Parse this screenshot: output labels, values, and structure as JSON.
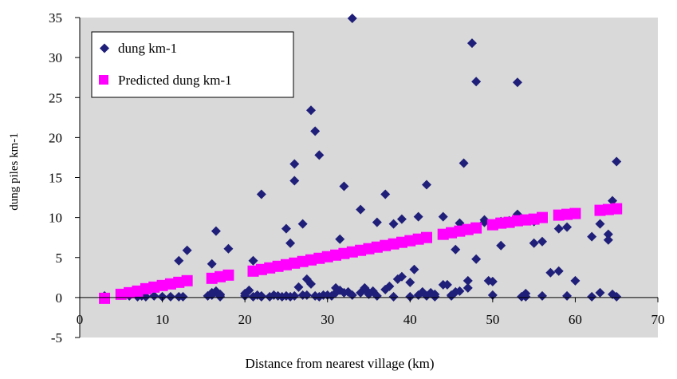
{
  "colors": {
    "plot_bg": "#d9d9d9",
    "observed": "#1f1f7a",
    "predicted": "#ff00ff",
    "axis": "#000000"
  },
  "chart_data": {
    "type": "scatter",
    "xlabel": "Distance from nearest village (km)",
    "ylabel": "dung piles km-1",
    "xlim": [
      0,
      70
    ],
    "ylim": [
      -5,
      35
    ],
    "xticks": [
      0,
      10,
      20,
      30,
      40,
      50,
      60,
      70
    ],
    "yticks": [
      -5,
      0,
      5,
      10,
      15,
      20,
      25,
      30,
      35
    ],
    "grid": false,
    "legend_position": "top-left",
    "series": [
      {
        "name": "dung km-1",
        "marker": "diamond",
        "x": [
          3,
          5,
          5.5,
          6,
          7,
          7.5,
          8,
          9,
          10,
          11,
          12,
          12.5,
          15.5,
          16,
          16,
          16.5,
          17,
          17,
          20,
          20,
          20.5,
          21,
          21.5,
          22,
          22,
          23,
          23.5,
          24,
          24.5,
          25,
          25.5,
          26,
          26.5,
          27,
          27.5,
          28,
          28.5,
          29,
          29.5,
          30,
          30.5,
          31,
          31.5,
          32,
          32.5,
          33,
          34,
          34.5,
          35,
          35.5,
          36,
          37,
          37.5,
          38,
          38.5,
          39,
          40,
          40.5,
          41,
          41.5,
          42,
          42.5,
          43,
          44,
          44.5,
          45,
          45.5,
          46,
          46.5,
          47,
          47.5,
          48,
          49,
          49.5,
          50,
          51,
          52,
          53,
          53.5,
          54,
          55,
          56,
          57,
          58,
          59,
          60,
          62,
          63,
          64,
          64.5,
          65,
          12,
          13,
          16,
          16.5,
          18,
          21,
          22,
          25,
          25.5,
          26,
          26,
          27,
          27.5,
          28,
          28.5,
          29,
          31,
          31.5,
          32,
          33,
          34,
          35,
          36,
          37,
          38,
          39,
          40,
          41,
          42,
          43,
          44,
          45,
          45.5,
          46,
          47,
          48,
          49,
          50,
          51,
          53,
          54,
          55,
          56,
          58,
          59,
          62,
          63,
          64,
          64.5,
          65,
          16,
          17
        ],
        "y": [
          0.2,
          0.3,
          0.4,
          0.2,
          0.1,
          0.2,
          0.1,
          0.2,
          0.1,
          0.1,
          0.1,
          0.1,
          0.2,
          0.3,
          0.5,
          0.8,
          0.1,
          0.3,
          0.2,
          0.5,
          0.9,
          0.1,
          0.3,
          0.2,
          0.1,
          0.1,
          0.3,
          0.2,
          0.1,
          0.2,
          0.1,
          0.2,
          1.3,
          0.3,
          0.3,
          1.7,
          0.2,
          0.1,
          0.3,
          0.3,
          0.2,
          1.2,
          0.9,
          0.6,
          0.7,
          0.3,
          0.6,
          1.2,
          0.4,
          0.8,
          0.2,
          1.0,
          1.4,
          0.1,
          2.3,
          2.6,
          0.1,
          3.5,
          0.3,
          0.7,
          0.2,
          0.6,
          0.1,
          1.6,
          1.6,
          0.2,
          6.0,
          0.8,
          16.8,
          1.2,
          31.8,
          4.8,
          9.4,
          2.1,
          2.0,
          9.5,
          9.6,
          10.4,
          0.1,
          0.1,
          6.8,
          7.0,
          3.1,
          8.6,
          8.8,
          2.1,
          7.6,
          9.2,
          7.9,
          12.1,
          17.0,
          4.6,
          5.9,
          4.2,
          8.3,
          6.1,
          4.6,
          12.9,
          8.6,
          6.8,
          16.7,
          14.6,
          9.2,
          2.3,
          23.4,
          20.8,
          17.8,
          0.6,
          7.3,
          13.9,
          34.9,
          11.0,
          0.6,
          9.4,
          12.9,
          9.2,
          9.8,
          1.9,
          10.1,
          14.1,
          0.4,
          10.1,
          0.3,
          0.7,
          9.3,
          2.1,
          27.0,
          9.7,
          0.3,
          6.5,
          26.9,
          0.5,
          9.5,
          0.2,
          3.3,
          0.2,
          0.1,
          0.6,
          7.2,
          0.4,
          0.1,
          0.6,
          0.4
        ]
      },
      {
        "name": "Predicted dung km-1",
        "marker": "square",
        "x": [
          3,
          5,
          6,
          7,
          8,
          9,
          10,
          11,
          12,
          13,
          16,
          17,
          18,
          21,
          22,
          23,
          24,
          25,
          26,
          27,
          28,
          29,
          30,
          31,
          32,
          33,
          34,
          35,
          36,
          37,
          38,
          39,
          40,
          41,
          42,
          44,
          45,
          46,
          47,
          48,
          50,
          51,
          52,
          53,
          54,
          55,
          56,
          58,
          59,
          60,
          63,
          64,
          65
        ],
        "y": [
          -0.1,
          0.4,
          0.6,
          0.8,
          1.1,
          1.3,
          1.5,
          1.7,
          1.9,
          2.1,
          2.4,
          2.6,
          2.8,
          3.3,
          3.5,
          3.7,
          3.9,
          4.1,
          4.3,
          4.5,
          4.7,
          4.9,
          5.1,
          5.3,
          5.5,
          5.7,
          5.9,
          6.1,
          6.3,
          6.5,
          6.7,
          6.9,
          7.1,
          7.3,
          7.5,
          7.9,
          8.1,
          8.3,
          8.5,
          8.7,
          9.1,
          9.3,
          9.4,
          9.6,
          9.7,
          9.8,
          10.0,
          10.3,
          10.4,
          10.5,
          10.9,
          11.0,
          11.1
        ]
      }
    ]
  }
}
